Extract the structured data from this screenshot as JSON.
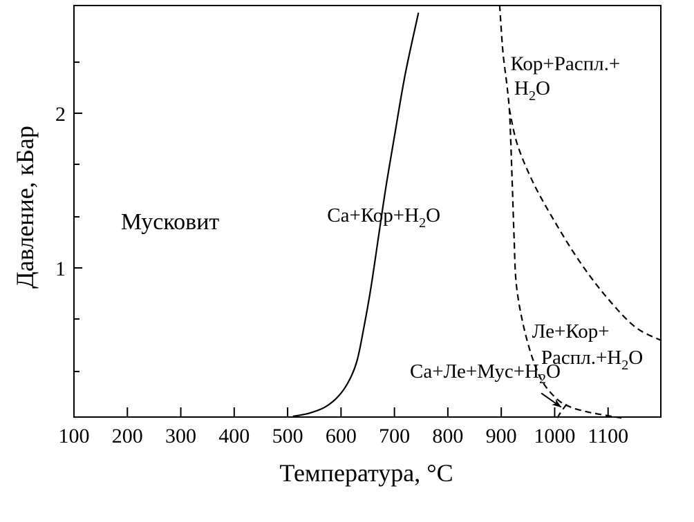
{
  "chart_data": {
    "type": "line",
    "xlabel": "Температура, °С",
    "ylabel": "Давление, кБар",
    "xlim": [
      100,
      1200
    ],
    "ylim": [
      0.03,
      2.7
    ],
    "x_ticks": [
      100,
      200,
      300,
      400,
      500,
      600,
      700,
      800,
      900,
      1000,
      1100
    ],
    "x_tick_labels": [
      "100",
      "200",
      "300",
      "400",
      "500",
      "600",
      "700",
      "800",
      "900",
      "1000",
      "1100"
    ],
    "y_major_ticks": [
      1,
      2
    ],
    "y_major_labels": [
      "1",
      "2"
    ],
    "y_minor_ticks": [
      0.33,
      0.67,
      1.33,
      1.67,
      2.33
    ],
    "grid": false,
    "curves": [
      {
        "style": "solid",
        "points": [
          [
            510,
            0.04
          ],
          [
            540,
            0.06
          ],
          [
            570,
            0.1
          ],
          [
            595,
            0.17
          ],
          [
            615,
            0.27
          ],
          [
            630,
            0.4
          ],
          [
            642,
            0.6
          ],
          [
            655,
            0.85
          ],
          [
            668,
            1.15
          ],
          [
            683,
            1.5
          ],
          [
            700,
            1.85
          ],
          [
            720,
            2.25
          ],
          [
            745,
            2.65
          ]
        ]
      },
      {
        "style": "dashed",
        "points": [
          [
            897,
            2.7
          ],
          [
            903,
            2.4
          ],
          [
            910,
            2.2
          ],
          [
            915,
            2.03
          ],
          [
            918,
            1.8
          ],
          [
            921,
            1.5
          ],
          [
            924,
            1.2
          ],
          [
            928,
            0.9
          ],
          [
            940,
            0.65
          ],
          [
            958,
            0.42
          ],
          [
            978,
            0.26
          ],
          [
            1005,
            0.15
          ],
          [
            1030,
            0.1
          ],
          [
            1060,
            0.07
          ],
          [
            1090,
            0.05
          ],
          [
            1125,
            0.03
          ]
        ]
      },
      {
        "style": "dashed",
        "points": [
          [
            915,
            2.03
          ],
          [
            930,
            1.8
          ],
          [
            960,
            1.55
          ],
          [
            1000,
            1.3
          ],
          [
            1045,
            1.05
          ],
          [
            1095,
            0.82
          ],
          [
            1150,
            0.62
          ],
          [
            1200,
            0.53
          ]
        ]
      },
      {
        "style": "dashed",
        "points": [
          [
            1005,
            0.03
          ],
          [
            1012,
            0.07
          ],
          [
            1025,
            0.13
          ]
        ]
      }
    ],
    "region_labels": [
      {
        "id": "muscovite",
        "text": "Мусковит",
        "x": 280,
        "y": 1.25
      },
      {
        "id": "sa-kor-h2o",
        "text": "Са+Кор+Н",
        "sub": "2",
        "suffix": "О",
        "x": 680,
        "y": 1.3
      },
      {
        "id": "kor-melt-h2o-line1",
        "text": "Кор+Распл.+",
        "x": 1020,
        "y": 2.28
      },
      {
        "id": "kor-melt-h2o-line2",
        "text": "Н",
        "sub": "2",
        "suffix": "О",
        "x": 958,
        "y": 2.12
      },
      {
        "id": "le-kor-line1",
        "text": "Ле+Кор+",
        "x": 1030,
        "y": 0.55
      },
      {
        "id": "le-kor-line2",
        "text": "Распл.+Н",
        "sub": "2",
        "suffix": "О",
        "x": 1070,
        "y": 0.38
      },
      {
        "id": "sa-le-mus-h2o",
        "text": "Са+Ле+Мус+Н",
        "sub": "2",
        "suffix": "О",
        "x": 870,
        "y": 0.29
      }
    ],
    "annotations": [
      {
        "type": "arrow",
        "from": [
          975,
          0.19
        ],
        "to": [
          1012,
          0.1
        ],
        "label": "sa-le-mus-h2o"
      }
    ]
  }
}
